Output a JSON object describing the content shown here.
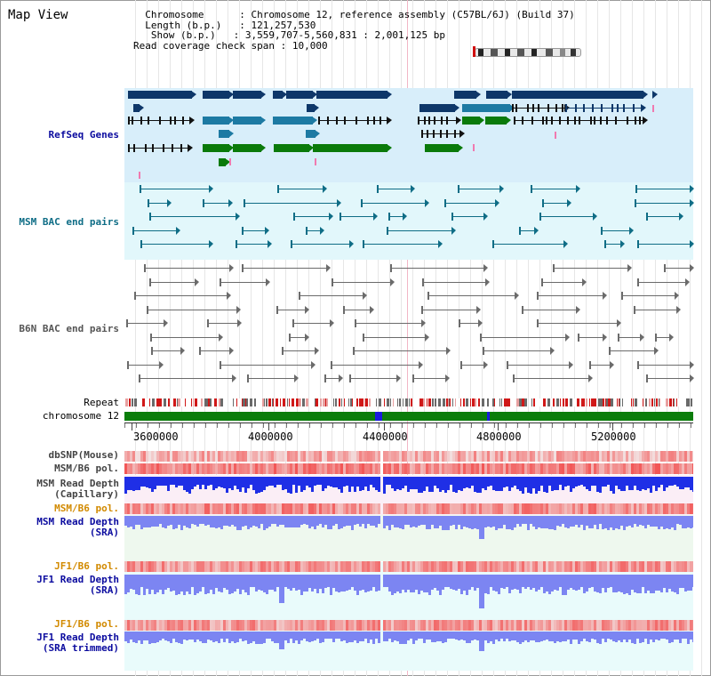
{
  "title": "Map View",
  "info": {
    "chromosome_key": "Chromosome",
    "chromosome_value": "Chromosome 12, reference assembly (C57BL/6J) (Build 37)",
    "length_key": "Length (b.p.)",
    "length_value": "121,257,530",
    "show_key": "Show (b.p.)",
    "show_value": "3,559,707-5,560,831 : 2,001,125 bp",
    "span_key": "Read coverage check span",
    "span_value": "10,000"
  },
  "tracks": {
    "refseq": "RefSeq Genes",
    "msm_bac": "MSM BAC end pairs",
    "b6n_bac": "B6N BAC end pairs",
    "repeat": "Repeat",
    "chromosome": "chromosome 12",
    "dbsnp": "dbSNP(Mouse)",
    "msm_b6_pol_1": "MSM/B6 pol.",
    "msm_depth_cap": "MSM Read Depth\n(Capillary)",
    "msm_b6_pol_2": "MSM/B6 pol.",
    "msm_depth_sra": "MSM Read Depth\n(SRA)",
    "jf1_b6_pol_1": "JF1/B6 pol.",
    "jf1_depth_sra": "JF1 Read Depth\n(SRA)",
    "jf1_b6_pol_2": "JF1/B6 pol.",
    "jf1_depth_trim": "JF1 Read Depth\n(SRA trimmed)"
  },
  "axis": {
    "ticks": [
      "3600000",
      "4000000",
      "4400000",
      "4800000",
      "5200000"
    ]
  },
  "colors": {
    "refseq_bg": "#d8eefa",
    "msm_bg": "#e2f7fb",
    "navy": "#0e3769",
    "teal": "#1d7aa3",
    "green": "#0a7a0a",
    "gray": "#6f6f6f",
    "chromosome": "#0b7d0b",
    "depth_blue": "#1f2fe6",
    "depth_light": "#7c85f2",
    "label_navy": "#0b0b9f",
    "label_orange": "#d28a00",
    "pol_red": "#e84848",
    "pol_pink": "#f7b0b0"
  }
}
